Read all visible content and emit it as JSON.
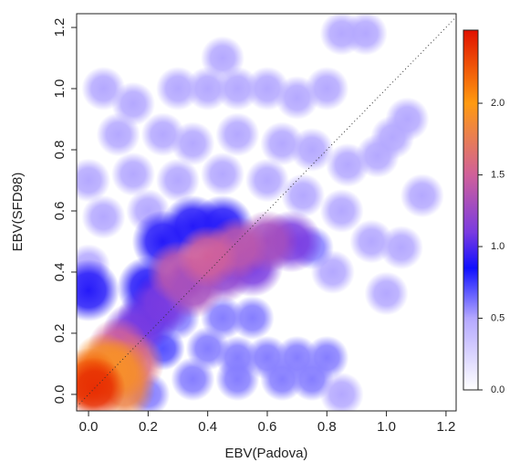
{
  "chart_data": {
    "type": "density",
    "x_label": "EBV(Padova)",
    "y_label": "EBV(SFD98)",
    "xlim": [
      -0.04,
      1.234
    ],
    "ylim": [
      -0.054,
      1.245
    ],
    "xticks": [
      {
        "value": 0,
        "label": "0.0"
      },
      {
        "value": 0.2,
        "label": "0.2"
      },
      {
        "value": 0.4,
        "label": "0.4"
      },
      {
        "value": 0.6,
        "label": "0.6"
      },
      {
        "value": 0.8,
        "label": "0.8"
      },
      {
        "value": 1,
        "label": "1.0"
      },
      {
        "value": 1.2,
        "label": "1.2"
      }
    ],
    "yticks": [
      {
        "value": 0,
        "label": "0.0"
      },
      {
        "value": 0.2,
        "label": "0.2"
      },
      {
        "value": 0.4,
        "label": "0.4"
      },
      {
        "value": 0.6,
        "label": "0.6"
      },
      {
        "value": 0.8,
        "label": "0.8"
      },
      {
        "value": 1,
        "label": "1.0"
      },
      {
        "value": 1.2,
        "label": "1.2"
      }
    ],
    "colorbar_lim": [
      0,
      2.51
    ],
    "colorbar_ticks": [
      {
        "value": 0,
        "label": "0.0"
      },
      {
        "value": 0.5,
        "label": "0.5"
      },
      {
        "value": 1,
        "label": "1.0"
      },
      {
        "value": 1.5,
        "label": "1.5"
      },
      {
        "value": 2,
        "label": "2.0"
      }
    ],
    "colormap": [
      {
        "value": 0,
        "color": "#ffffff"
      },
      {
        "value": 0.5,
        "color": "#b4a8ff"
      },
      {
        "value": 0.85,
        "color": "#1010ff"
      },
      {
        "value": 1.1,
        "color": "#7a3be0"
      },
      {
        "value": 1.5,
        "color": "#d0609a"
      },
      {
        "value": 2,
        "color": "#ff9a10"
      },
      {
        "value": 2.51,
        "color": "#e01000"
      }
    ],
    "diagonal": true,
    "x": [
      0.93,
      0.85,
      0.45,
      0.05,
      0.15,
      0.3,
      0.4,
      0.5,
      0.6,
      0.7,
      0.8,
      1.07,
      0.97,
      1.02,
      0.87,
      0.1,
      0.25,
      0.35,
      0.5,
      0.65,
      0.75,
      0.0,
      0.15,
      0.3,
      0.45,
      0.6,
      0.72,
      1.12,
      0.85,
      0.05,
      0.2,
      0.95,
      1.05,
      0.82,
      0.75,
      1.0,
      0.0,
      0.3,
      0.45,
      0.55,
      0.4,
      0.5,
      0.6,
      0.7,
      0.8,
      0.35,
      0.5,
      0.65,
      0.75,
      0.25,
      0.2,
      0.85,
      0.0,
      0.2,
      0.25,
      0.35,
      0.45,
      0.2,
      0.55,
      0.68,
      0.45,
      0.25,
      0.6,
      0.3,
      0.35,
      0.5,
      0.15,
      0.4,
      0.1,
      0.15,
      0.12,
      0.05,
      0.1,
      0.0,
      0.02
    ],
    "y": [
      1.18,
      1.18,
      1.1,
      1.0,
      0.95,
      1.0,
      1.0,
      1.0,
      1.0,
      0.97,
      1.0,
      0.9,
      0.78,
      0.84,
      0.75,
      0.85,
      0.85,
      0.82,
      0.85,
      0.82,
      0.8,
      0.7,
      0.72,
      0.7,
      0.72,
      0.7,
      0.65,
      0.65,
      0.6,
      0.58,
      0.6,
      0.5,
      0.48,
      0.4,
      0.48,
      0.33,
      0.42,
      0.25,
      0.25,
      0.25,
      0.15,
      0.12,
      0.12,
      0.12,
      0.12,
      0.05,
      0.05,
      0.05,
      0.05,
      0.15,
      0.0,
      0.0,
      0.34,
      0.35,
      0.5,
      0.55,
      0.55,
      0.25,
      0.42,
      0.5,
      0.4,
      0.3,
      0.5,
      0.4,
      0.35,
      0.48,
      0.2,
      0.45,
      0.15,
      0.1,
      0.02,
      0.1,
      0.08,
      0.05,
      0.02
    ],
    "values": [
      0.5,
      0.5,
      0.5,
      0.5,
      0.5,
      0.5,
      0.5,
      0.5,
      0.5,
      0.5,
      0.5,
      0.5,
      0.5,
      0.5,
      0.5,
      0.5,
      0.5,
      0.5,
      0.5,
      0.5,
      0.5,
      0.5,
      0.5,
      0.5,
      0.5,
      0.5,
      0.5,
      0.5,
      0.5,
      0.5,
      0.5,
      0.5,
      0.5,
      0.5,
      0.6,
      0.5,
      0.5,
      0.6,
      0.6,
      0.6,
      0.6,
      0.6,
      0.6,
      0.6,
      0.6,
      0.6,
      0.6,
      0.6,
      0.6,
      0.7,
      0.6,
      0.5,
      0.9,
      0.9,
      0.9,
      0.9,
      0.9,
      1.0,
      1.1,
      1.1,
      1.2,
      1.1,
      1.3,
      1.4,
      1.3,
      1.4,
      1.1,
      1.5,
      1.5,
      1.6,
      1.8,
      1.9,
      1.9,
      2.2,
      2.4
    ]
  }
}
